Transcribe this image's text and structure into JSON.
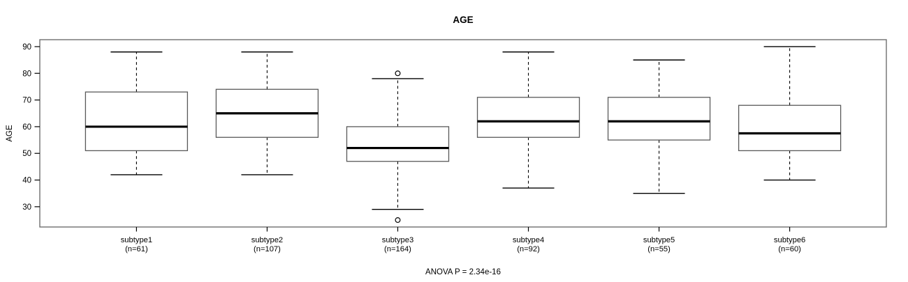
{
  "figure": {
    "title": "AGE",
    "y_axis_label": "AGE",
    "caption": "ANOVA P = 2.34e-16"
  },
  "chart_data": {
    "type": "boxplot",
    "title": "AGE",
    "xlabel": "",
    "ylabel": "AGE",
    "annotation": "ANOVA P = 2.34e-16",
    "grid": false,
    "legend": "none",
    "ylim": [
      22.4,
      92.6
    ],
    "yticks": [
      30,
      40,
      50,
      60,
      70,
      80,
      90
    ],
    "categories": [
      "subtype1",
      "subtype2",
      "subtype3",
      "subtype4",
      "subtype5",
      "subtype6"
    ],
    "groups": [
      {
        "label": "subtype1",
        "n_label": "(n=61)",
        "n": 61,
        "whisker_low": 42,
        "q1": 51,
        "median": 60,
        "q3": 73,
        "whisker_high": 88,
        "outliers": []
      },
      {
        "label": "subtype2",
        "n_label": "(n=107)",
        "n": 107,
        "whisker_low": 42,
        "q1": 56,
        "median": 65,
        "q3": 74,
        "whisker_high": 88,
        "outliers": []
      },
      {
        "label": "subtype3",
        "n_label": "(n=164)",
        "n": 164,
        "whisker_low": 29,
        "q1": 47,
        "median": 52,
        "q3": 60,
        "whisker_high": 78,
        "outliers": [
          80,
          25
        ]
      },
      {
        "label": "subtype4",
        "n_label": "(n=92)",
        "n": 92,
        "whisker_low": 37,
        "q1": 56,
        "median": 62,
        "q3": 71,
        "whisker_high": 88,
        "outliers": []
      },
      {
        "label": "subtype5",
        "n_label": "(n=55)",
        "n": 55,
        "whisker_low": 35,
        "q1": 55,
        "median": 62,
        "q3": 71,
        "whisker_high": 85,
        "outliers": []
      },
      {
        "label": "subtype6",
        "n_label": "(n=60)",
        "n": 60,
        "whisker_low": 40,
        "q1": 51,
        "median": 57.5,
        "q3": 68,
        "whisker_high": 90,
        "outliers": []
      }
    ],
    "colors": {
      "background": "#ffffff",
      "frame_stroke": "#6e6e6e",
      "box_stroke": "#5a5a5a",
      "line_stroke": "#000000",
      "text": "#000000"
    }
  }
}
